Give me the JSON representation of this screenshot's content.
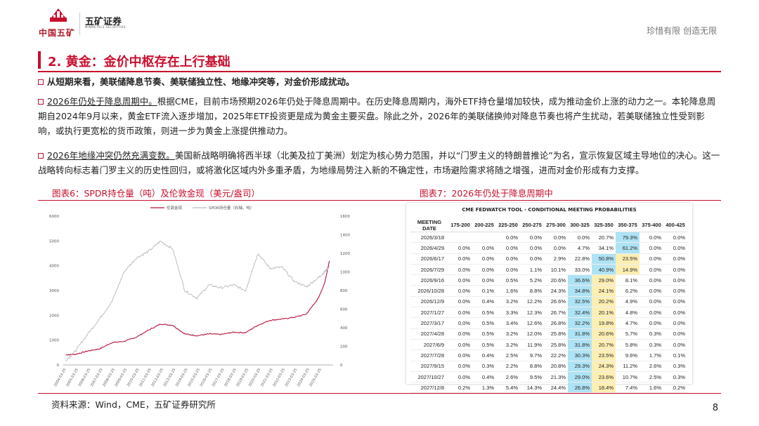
{
  "header": {
    "company_cn": "中国五矿",
    "securities_cn": "五矿证券",
    "securities_en": "MINMETALS SECURITIES",
    "slogan": "珍惜有限  创造无限"
  },
  "section_title": "2. 黄金：金价中枢存在上行基础",
  "para1": "从短期来看，美联储降息节奏、美联储独立性、地缘冲突等，对金价形成扰动。",
  "para2_lead": "2026年仍处于降息周期中。",
  "para2_body": "根据CME，目前市场预期2026年仍处于降息周期中。在历史降息周期内，海外ETF持仓量增加较快，成为推动金价上涨的动力之一。本轮降息周期自2024年9月以来，黄金ETF流入逐步增加，2025年ETF投资更是成为黄金主要买盘。除此之外，2026年的美联储换帅对降息节奏也将产生扰动，若美联储独立性受到影响，或执行更宽松的货币政策，则进一步为黄金上涨提供推动力。",
  "para3_lead": "2026年地缘冲突仍然充满变数。",
  "para3_body": "美国新战略明确将西半球（北美及拉丁美洲）划定为核心势力范围，并以“门罗主义的特朗普推论”为名，宣示恢复区域主导地位的决心。这一战略转向标志着门罗主义的历史性回归，或将激化区域内外多重矛盾，为地缘局势注入新的不确定性，市场避险需求将随之增强，进而对金价形成有力支撑。",
  "fig6_title": "图表6：SPDR持仓量（吨）及伦敦金现（美元/盎司）",
  "fig7_title": "图表7：2026年仍处于降息周期中",
  "chart_data": {
    "type": "line",
    "legend": [
      "伦敦金现",
      "SPDR持仓量（右轴，吨）"
    ],
    "y_left_ticks": [
      "0",
      "1000",
      "2000",
      "3000",
      "4000",
      "5000",
      "6000"
    ],
    "y_right_ticks": [
      "0",
      "200",
      "400",
      "600",
      "800",
      "1000",
      "1200",
      "1400",
      "1600"
    ],
    "ylim_left": [
      0,
      6000
    ],
    "ylim_right": [
      0,
      1600
    ],
    "x_ticks": [
      "2004-03-25",
      "2005-03-25",
      "2006-03-25",
      "2007-03-25",
      "2008-03-25",
      "2009-03-25",
      "2010-03-25",
      "2011-03-25",
      "2012-03-25",
      "2013-03-25",
      "2014-03-25",
      "2015-03-25",
      "2016-03-25",
      "2017-03-25",
      "2018-03-25",
      "2019-03-25",
      "2020-03-25",
      "2021-03-25",
      "2022-03-25",
      "2023-03-25",
      "2024-03-25",
      "2025-03-25"
    ],
    "x_years": [
      2004.2,
      2005,
      2006,
      2007,
      2008,
      2009,
      2010,
      2011,
      2012,
      2013,
      2014,
      2015,
      2016,
      2017,
      2018,
      2019,
      2020,
      2021,
      2022,
      2023,
      2024,
      2025,
      2025.5,
      2025.9
    ],
    "series": [
      {
        "name": "伦敦金现",
        "axis": "left",
        "color": "#b5123a",
        "values": [
          410,
          430,
          560,
          650,
          900,
          950,
          1120,
          1400,
          1650,
          1600,
          1250,
          1180,
          1250,
          1230,
          1320,
          1300,
          1600,
          1800,
          1850,
          1920,
          2050,
          2700,
          3300,
          4200
        ]
      },
      {
        "name": "SPDR持仓量（右轴，吨）",
        "axis": "right",
        "color": "#b7b7b7",
        "values": [
          50,
          150,
          330,
          500,
          680,
          1000,
          1150,
          1220,
          1330,
          1250,
          800,
          720,
          860,
          830,
          860,
          800,
          1200,
          1040,
          1050,
          900,
          840,
          940,
          1000,
          1060
        ]
      }
    ]
  },
  "fedwatch": {
    "title": "CME FEDWATCH TOOL - CONDITIONAL MEETING PROBABILITIES",
    "columns": [
      "MEETING DATE",
      "175-200",
      "200-225",
      "225-250",
      "250-275",
      "275-300",
      "300-325",
      "325-350",
      "350-375",
      "375-400",
      "400-425"
    ],
    "rows": [
      [
        "2026/3/18",
        "",
        "",
        "0.0%",
        "0.0%",
        "0.0%",
        "0.0%",
        "20.7%",
        "79.3%",
        "0.0%",
        "0.0%"
      ],
      [
        "2026/4/29",
        "0.0%",
        "0.0%",
        "0.0%",
        "0.0%",
        "0.0%",
        "4.7%",
        "34.1%",
        "61.2%",
        "0.0%",
        "0.0%"
      ],
      [
        "2026/6/17",
        "0.0%",
        "0.0%",
        "0.0%",
        "0.0%",
        "2.9%",
        "22.8%",
        "50.8%",
        "23.5%",
        "0.0%",
        "0.0%"
      ],
      [
        "2026/7/29",
        "0.0%",
        "0.0%",
        "0.0%",
        "1.1%",
        "10.1%",
        "33.0%",
        "40.9%",
        "14.9%",
        "0.0%",
        "0.0%"
      ],
      [
        "2026/9/16",
        "0.0%",
        "0.0%",
        "0.5%",
        "5.2%",
        "20.6%",
        "36.6%",
        "29.0%",
        "8.1%",
        "0.0%",
        "0.0%"
      ],
      [
        "2026/10/28",
        "0.0%",
        "0.1%",
        "1.6%",
        "8.8%",
        "24.3%",
        "34.8%",
        "24.1%",
        "6.2%",
        "0.0%",
        "0.0%"
      ],
      [
        "2026/12/9",
        "0.0%",
        "0.4%",
        "3.2%",
        "12.2%",
        "26.6%",
        "32.5%",
        "20.2%",
        "4.9%",
        "0.0%",
        "0.0%"
      ],
      [
        "2027/1/27",
        "0.0%",
        "0.5%",
        "3.3%",
        "12.3%",
        "26.7%",
        "32.4%",
        "20.1%",
        "4.8%",
        "0.0%",
        "0.0%"
      ],
      [
        "2027/3/17",
        "0.0%",
        "0.5%",
        "3.4%",
        "12.6%",
        "26.8%",
        "32.2%",
        "19.8%",
        "4.7%",
        "0.0%",
        "0.0%"
      ],
      [
        "2027/4/28",
        "0.0%",
        "0.5%",
        "3.2%",
        "12.0%",
        "25.8%",
        "31.8%",
        "20.6%",
        "5.7%",
        "0.3%",
        "0.0%"
      ],
      [
        "2027/6/9",
        "0.0%",
        "0.5%",
        "3.2%",
        "11.9%",
        "25.8%",
        "31.8%",
        "20.7%",
        "5.8%",
        "0.3%",
        "0.0%"
      ],
      [
        "2027/7/28",
        "0.0%",
        "0.4%",
        "2.5%",
        "9.7%",
        "22.2%",
        "30.3%",
        "23.5%",
        "9.6%",
        "1.7%",
        "0.1%"
      ],
      [
        "2027/9/15",
        "0.0%",
        "0.3%",
        "2.2%",
        "8.8%",
        "20.8%",
        "29.3%",
        "24.3%",
        "11.2%",
        "2.6%",
        "0.3%"
      ],
      [
        "2027/10/27",
        "0.0%",
        "0.4%",
        "2.6%",
        "9.5%",
        "21.3%",
        "29.0%",
        "23.6%",
        "10.7%",
        "2.5%",
        "0.3%"
      ],
      [
        "2027/12/8",
        "0.2%",
        "1.3%",
        "5.4%",
        "14.3%",
        "24.4%",
        "26.8%",
        "18.4%",
        "7.4%",
        "1.6%",
        "0.2%"
      ]
    ],
    "highlight_blue": [
      [
        0,
        8
      ],
      [
        1,
        8
      ],
      [
        2,
        7
      ],
      [
        3,
        7
      ],
      [
        4,
        6
      ],
      [
        5,
        6
      ],
      [
        6,
        6
      ],
      [
        7,
        6
      ],
      [
        8,
        6
      ],
      [
        9,
        6
      ],
      [
        10,
        6
      ],
      [
        11,
        6
      ],
      [
        12,
        6
      ],
      [
        13,
        6
      ],
      [
        14,
        6
      ]
    ],
    "highlight_yellow": [
      [
        2,
        8
      ],
      [
        3,
        8
      ],
      [
        4,
        7
      ],
      [
        5,
        7
      ],
      [
        6,
        7
      ],
      [
        7,
        7
      ],
      [
        8,
        7
      ],
      [
        9,
        7
      ],
      [
        10,
        7
      ],
      [
        11,
        7
      ],
      [
        12,
        7
      ],
      [
        13,
        7
      ],
      [
        14,
        7
      ]
    ]
  },
  "source": "资料来源：Wind，CME，五矿证券研究所",
  "page_number": "8"
}
